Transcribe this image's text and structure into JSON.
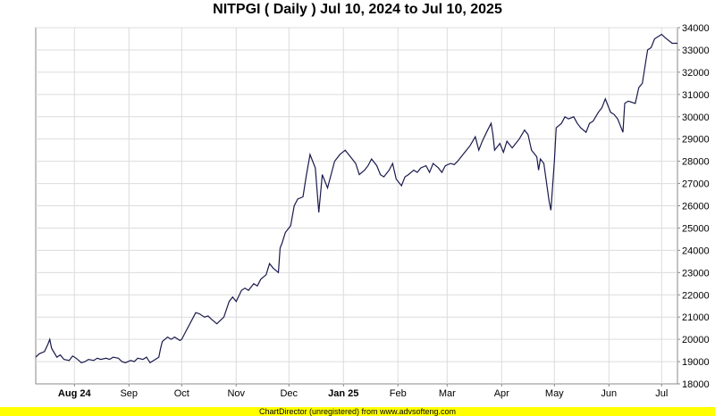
{
  "chart_data": {
    "type": "line",
    "title": "NITPGI ( Daily ) Jul 10, 2024 to Jul 10, 2025",
    "xlabel": "",
    "ylabel": "",
    "ylim": [
      18000,
      34000
    ],
    "y_ticks": [
      18000,
      19000,
      20000,
      21000,
      22000,
      23000,
      24000,
      25000,
      26000,
      27000,
      28000,
      29000,
      30000,
      31000,
      32000,
      33000,
      34000
    ],
    "x_ticks": [
      {
        "label": "Aug 24",
        "date": "2024-08-01",
        "bold": true
      },
      {
        "label": "Sep",
        "date": "2024-09-01",
        "bold": false
      },
      {
        "label": "Oct",
        "date": "2024-10-01",
        "bold": false
      },
      {
        "label": "Nov",
        "date": "2024-11-01",
        "bold": false
      },
      {
        "label": "Dec",
        "date": "2024-12-01",
        "bold": false
      },
      {
        "label": "Jan 25",
        "date": "2025-01-01",
        "bold": true
      },
      {
        "label": "Feb",
        "date": "2025-02-01",
        "bold": false
      },
      {
        "label": "Mar",
        "date": "2025-03-01",
        "bold": false
      },
      {
        "label": "Apr",
        "date": "2025-04-01",
        "bold": false
      },
      {
        "label": "May",
        "date": "2025-05-01",
        "bold": false
      },
      {
        "label": "Jun",
        "date": "2025-06-01",
        "bold": false
      },
      {
        "label": "Jul",
        "date": "2025-07-01",
        "bold": false
      }
    ],
    "x_range": [
      "2024-07-10",
      "2025-07-10"
    ],
    "grid": true,
    "y_axis_position": "right",
    "line_color": "#1a1a4e",
    "series": [
      {
        "points": [
          [
            "2024-07-10",
            19200
          ],
          [
            "2024-07-12",
            19350
          ],
          [
            "2024-07-15",
            19450
          ],
          [
            "2024-07-17",
            19800
          ],
          [
            "2024-07-18",
            20000
          ],
          [
            "2024-07-19",
            19600
          ],
          [
            "2024-07-22",
            19200
          ],
          [
            "2024-07-24",
            19300
          ],
          [
            "2024-07-26",
            19100
          ],
          [
            "2024-07-29",
            19050
          ],
          [
            "2024-07-31",
            19250
          ],
          [
            "2024-08-02",
            19150
          ],
          [
            "2024-08-05",
            18950
          ],
          [
            "2024-08-07",
            19000
          ],
          [
            "2024-08-09",
            19100
          ],
          [
            "2024-08-12",
            19050
          ],
          [
            "2024-08-14",
            19150
          ],
          [
            "2024-08-16",
            19100
          ],
          [
            "2024-08-19",
            19150
          ],
          [
            "2024-08-21",
            19100
          ],
          [
            "2024-08-23",
            19200
          ],
          [
            "2024-08-26",
            19150
          ],
          [
            "2024-08-28",
            19000
          ],
          [
            "2024-08-30",
            18950
          ],
          [
            "2024-09-02",
            19050
          ],
          [
            "2024-09-04",
            19000
          ],
          [
            "2024-09-06",
            19150
          ],
          [
            "2024-09-09",
            19100
          ],
          [
            "2024-09-11",
            19200
          ],
          [
            "2024-09-13",
            18950
          ],
          [
            "2024-09-16",
            19100
          ],
          [
            "2024-09-18",
            19200
          ],
          [
            "2024-09-19",
            19600
          ],
          [
            "2024-09-20",
            19900
          ],
          [
            "2024-09-23",
            20100
          ],
          [
            "2024-09-25",
            20000
          ],
          [
            "2024-09-27",
            20100
          ],
          [
            "2024-09-30",
            19950
          ],
          [
            "2024-10-01",
            20000
          ],
          [
            "2024-10-03",
            20300
          ],
          [
            "2024-10-07",
            20900
          ],
          [
            "2024-10-09",
            21200
          ],
          [
            "2024-10-11",
            21150
          ],
          [
            "2024-10-14",
            21000
          ],
          [
            "2024-10-16",
            21050
          ],
          [
            "2024-10-18",
            20900
          ],
          [
            "2024-10-21",
            20700
          ],
          [
            "2024-10-23",
            20850
          ],
          [
            "2024-10-25",
            21000
          ],
          [
            "2024-10-28",
            21700
          ],
          [
            "2024-10-30",
            21900
          ],
          [
            "2024-11-01",
            21700
          ],
          [
            "2024-11-04",
            22200
          ],
          [
            "2024-11-06",
            22300
          ],
          [
            "2024-11-08",
            22200
          ],
          [
            "2024-11-11",
            22500
          ],
          [
            "2024-11-13",
            22400
          ],
          [
            "2024-11-15",
            22700
          ],
          [
            "2024-11-18",
            22900
          ],
          [
            "2024-11-20",
            23400
          ],
          [
            "2024-11-22",
            23200
          ],
          [
            "2024-11-25",
            23000
          ],
          [
            "2024-11-26",
            24100
          ],
          [
            "2024-11-27",
            24300
          ],
          [
            "2024-11-29",
            24800
          ],
          [
            "2024-12-02",
            25100
          ],
          [
            "2024-12-04",
            26000
          ],
          [
            "2024-12-06",
            26300
          ],
          [
            "2024-12-09",
            26400
          ],
          [
            "2024-12-11",
            27400
          ],
          [
            "2024-12-13",
            28300
          ],
          [
            "2024-12-16",
            27700
          ],
          [
            "2024-12-18",
            25700
          ],
          [
            "2024-12-20",
            27400
          ],
          [
            "2024-12-23",
            26800
          ],
          [
            "2024-12-27",
            28000
          ],
          [
            "2024-12-30",
            28300
          ],
          [
            "2025-01-02",
            28500
          ],
          [
            "2025-01-06",
            28100
          ],
          [
            "2025-01-08",
            27900
          ],
          [
            "2025-01-10",
            27400
          ],
          [
            "2025-01-13",
            27600
          ],
          [
            "2025-01-15",
            27800
          ],
          [
            "2025-01-17",
            28100
          ],
          [
            "2025-01-20",
            27800
          ],
          [
            "2025-01-22",
            27400
          ],
          [
            "2025-01-24",
            27300
          ],
          [
            "2025-01-27",
            27600
          ],
          [
            "2025-01-29",
            27900
          ],
          [
            "2025-01-31",
            27200
          ],
          [
            "2025-02-03",
            26900
          ],
          [
            "2025-02-05",
            27300
          ],
          [
            "2025-02-07",
            27400
          ],
          [
            "2025-02-10",
            27600
          ],
          [
            "2025-02-12",
            27500
          ],
          [
            "2025-02-14",
            27700
          ],
          [
            "2025-02-17",
            27800
          ],
          [
            "2025-02-19",
            27500
          ],
          [
            "2025-02-21",
            27900
          ],
          [
            "2025-02-24",
            27700
          ],
          [
            "2025-02-26",
            27500
          ],
          [
            "2025-02-28",
            27800
          ],
          [
            "2025-03-03",
            27900
          ],
          [
            "2025-03-05",
            27850
          ],
          [
            "2025-03-07",
            28000
          ],
          [
            "2025-03-10",
            28300
          ],
          [
            "2025-03-12",
            28500
          ],
          [
            "2025-03-14",
            28700
          ],
          [
            "2025-03-17",
            29100
          ],
          [
            "2025-03-19",
            28500
          ],
          [
            "2025-03-21",
            28900
          ],
          [
            "2025-03-24",
            29400
          ],
          [
            "2025-03-26",
            29700
          ],
          [
            "2025-03-27",
            29200
          ],
          [
            "2025-03-28",
            28500
          ],
          [
            "2025-03-31",
            28800
          ],
          [
            "2025-04-02",
            28400
          ],
          [
            "2025-04-04",
            28900
          ],
          [
            "2025-04-07",
            28600
          ],
          [
            "2025-04-09",
            28800
          ],
          [
            "2025-04-11",
            29000
          ],
          [
            "2025-04-14",
            29400
          ],
          [
            "2025-04-16",
            29200
          ],
          [
            "2025-04-18",
            28500
          ],
          [
            "2025-04-21",
            28200
          ],
          [
            "2025-04-22",
            27600
          ],
          [
            "2025-04-23",
            28100
          ],
          [
            "2025-04-25",
            27900
          ],
          [
            "2025-04-28",
            26200
          ],
          [
            "2025-04-29",
            25800
          ],
          [
            "2025-05-01",
            28000
          ],
          [
            "2025-05-02",
            29500
          ],
          [
            "2025-05-05",
            29700
          ],
          [
            "2025-05-07",
            30000
          ],
          [
            "2025-05-09",
            29900
          ],
          [
            "2025-05-12",
            30000
          ],
          [
            "2025-05-14",
            29700
          ],
          [
            "2025-05-16",
            29500
          ],
          [
            "2025-05-19",
            29300
          ],
          [
            "2025-05-21",
            29700
          ],
          [
            "2025-05-23",
            29800
          ],
          [
            "2025-05-26",
            30200
          ],
          [
            "2025-05-28",
            30400
          ],
          [
            "2025-05-30",
            30800
          ],
          [
            "2025-06-02",
            30200
          ],
          [
            "2025-06-04",
            30100
          ],
          [
            "2025-06-06",
            29900
          ],
          [
            "2025-06-09",
            29300
          ],
          [
            "2025-06-10",
            30600
          ],
          [
            "2025-06-12",
            30700
          ],
          [
            "2025-06-16",
            30600
          ],
          [
            "2025-06-18",
            31300
          ],
          [
            "2025-06-20",
            31500
          ],
          [
            "2025-06-23",
            33000
          ],
          [
            "2025-06-25",
            33100
          ],
          [
            "2025-06-27",
            33500
          ],
          [
            "2025-07-01",
            33700
          ],
          [
            "2025-07-03",
            33550
          ],
          [
            "2025-07-07",
            33300
          ],
          [
            "2025-07-10",
            33300
          ]
        ]
      }
    ]
  },
  "footer": {
    "text": "ChartDirector (unregistered) from www.advsofteng.com"
  }
}
